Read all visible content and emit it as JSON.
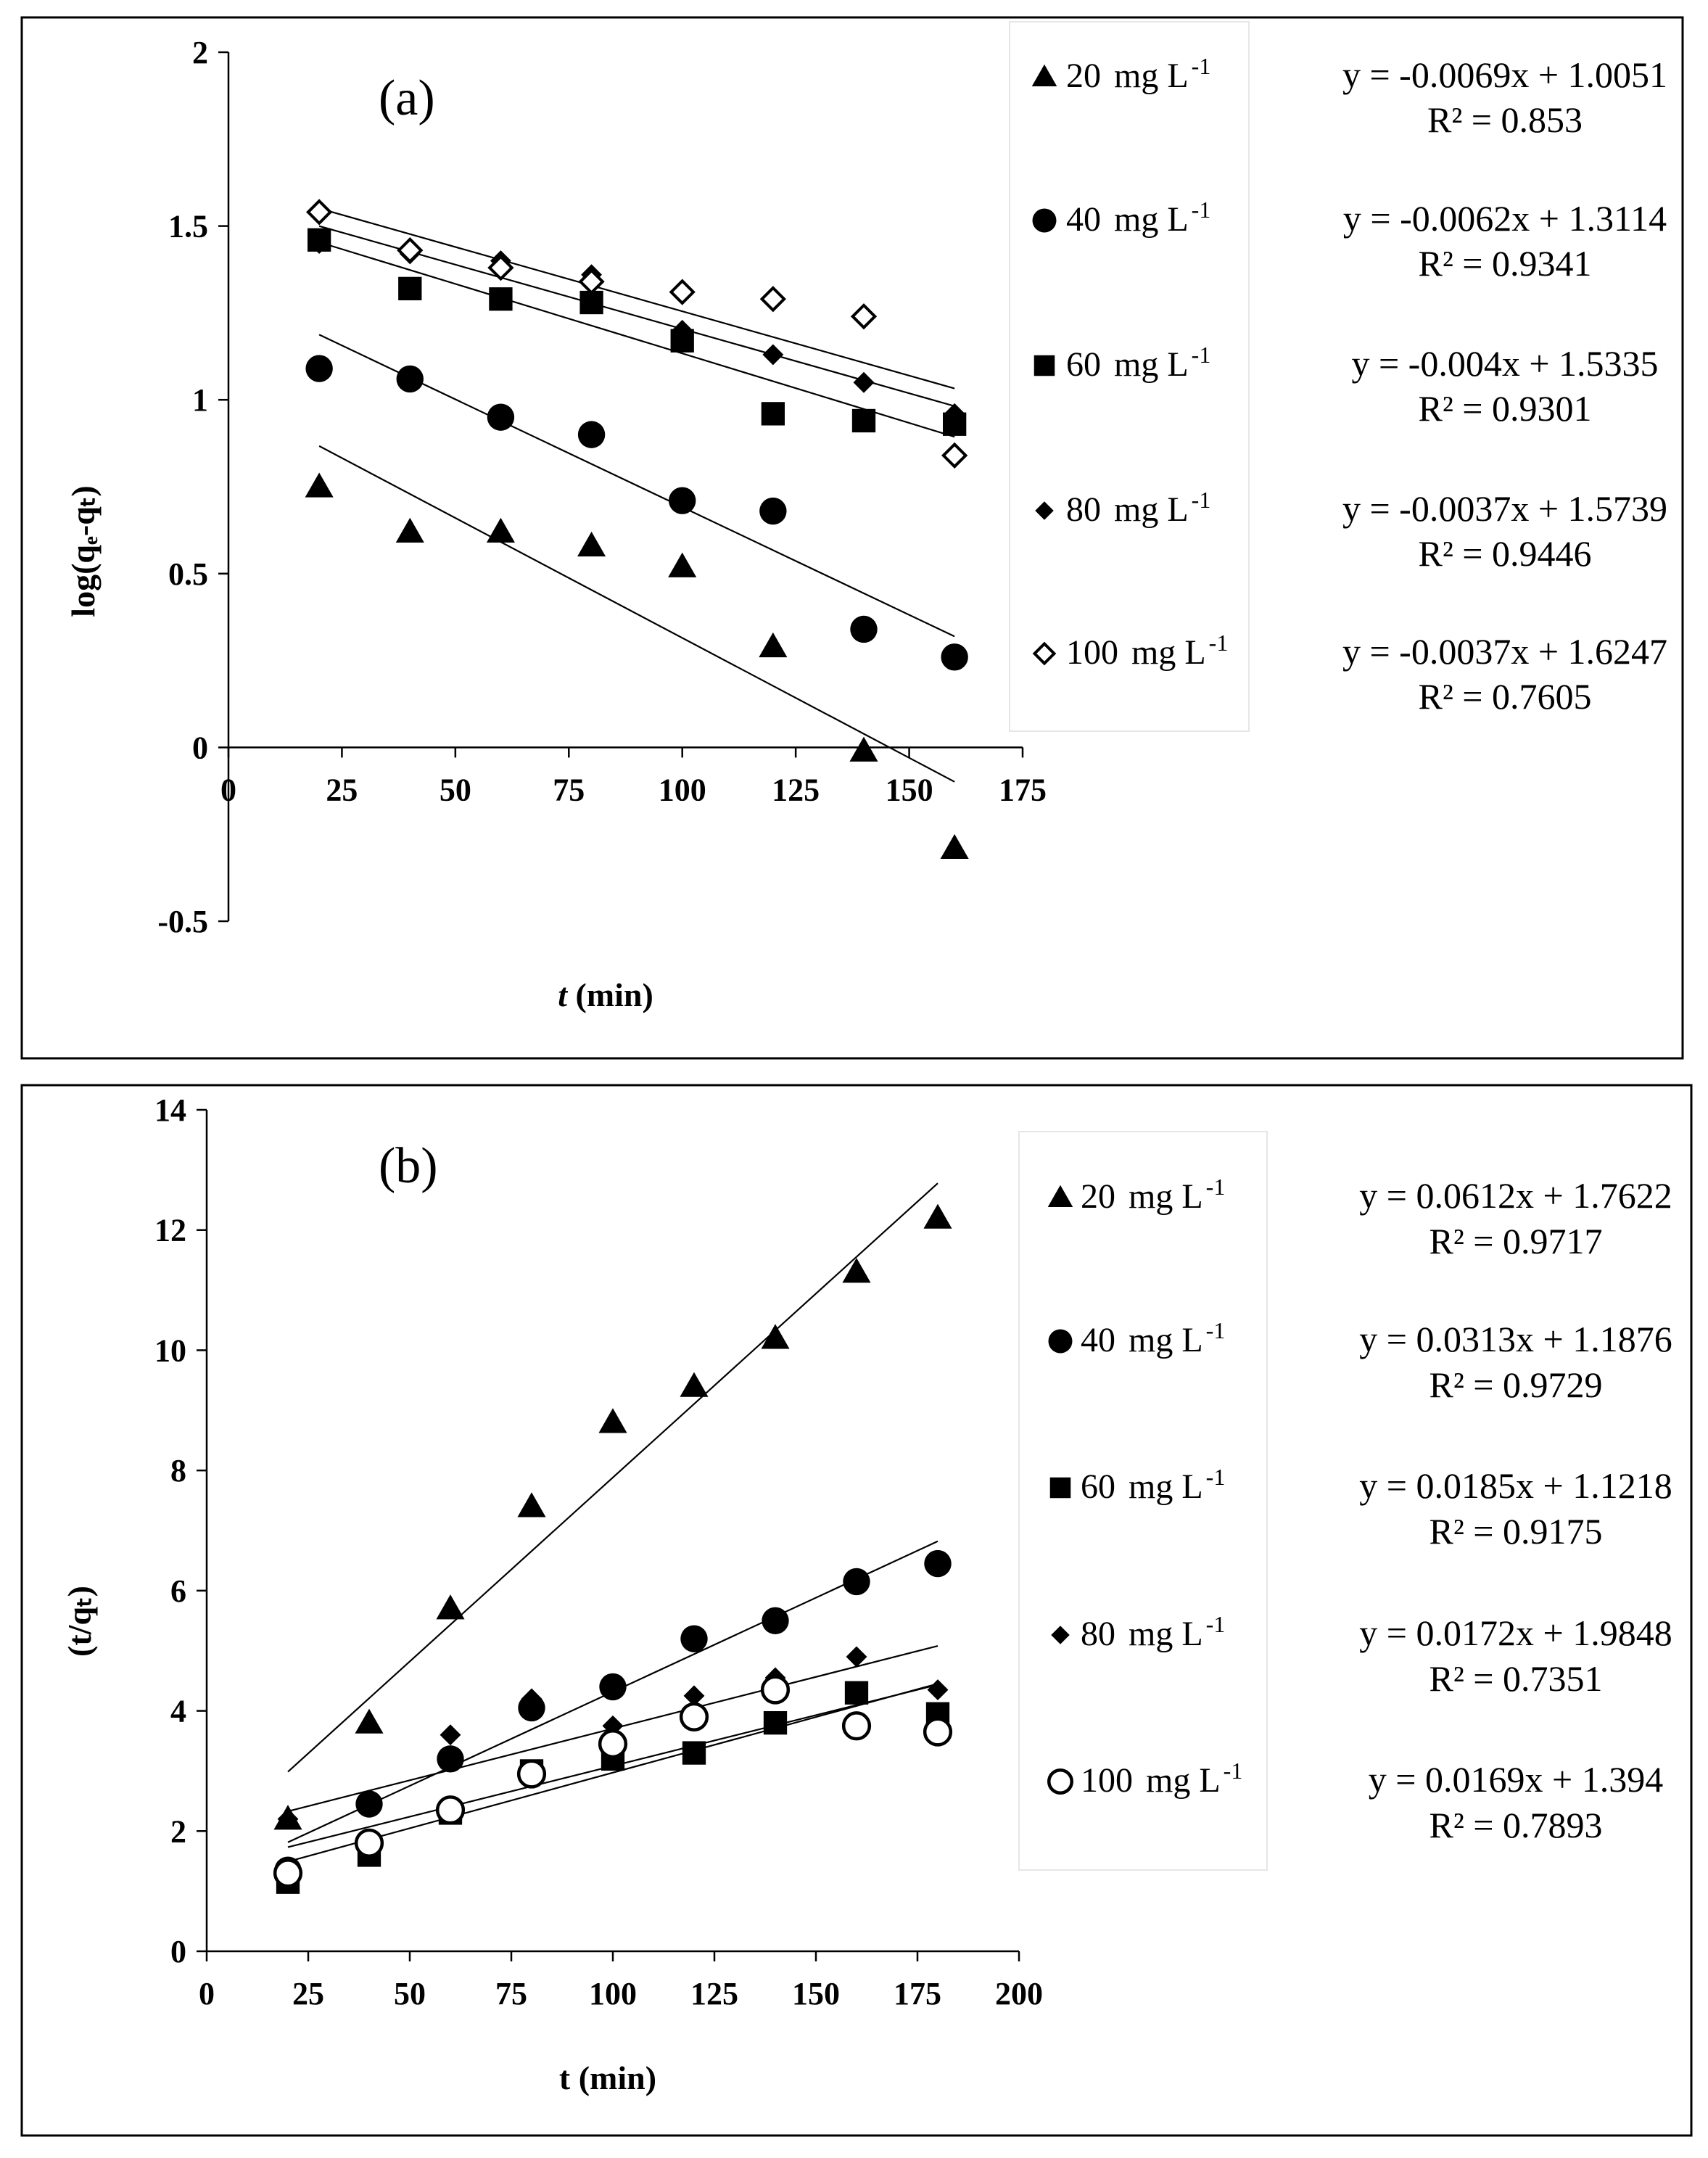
{
  "chart_data": [
    {
      "id": "a",
      "type": "scatter",
      "panel_label": "(a)",
      "xlabel_italic": "t",
      "xlabel_rest": " (min)",
      "ylabel": "log(qₑ-qₜ)",
      "xlim": [
        0,
        175
      ],
      "ylim": [
        -0.5,
        2
      ],
      "xticks": [
        0,
        25,
        50,
        75,
        100,
        125,
        150,
        175
      ],
      "xtick_labels": [
        "0",
        "25",
        "50",
        "75",
        "100",
        "125",
        "150",
        "175"
      ],
      "yticks": [
        -0.5,
        0,
        0.5,
        1,
        1.5,
        2
      ],
      "ytick_labels": [
        "-0.5",
        "0",
        "0.5",
        "1",
        "1.5",
        "2"
      ],
      "series": [
        {
          "name": "20",
          "unit": "mg L",
          "unit_sup": "-1",
          "marker": "triangle",
          "x": [
            20,
            40,
            60,
            80,
            100,
            120,
            140,
            160
          ],
          "y": [
            0.75,
            0.62,
            0.62,
            0.58,
            0.52,
            0.29,
            -0.01,
            -0.29
          ],
          "fit": {
            "slope": -0.0069,
            "intercept": 1.0051,
            "x_range": [
              20,
              160
            ]
          },
          "equation": "y = -0.0069x + 1.0051",
          "r2": "R² = 0.853"
        },
        {
          "name": "40",
          "unit": "mg L",
          "unit_sup": "-1",
          "marker": "circle",
          "x": [
            20,
            40,
            60,
            80,
            100,
            120,
            140,
            160
          ],
          "y": [
            1.09,
            1.06,
            0.95,
            0.9,
            0.71,
            0.68,
            0.34,
            0.26
          ],
          "fit": {
            "slope": -0.0062,
            "intercept": 1.3114,
            "x_range": [
              20,
              160
            ]
          },
          "equation": "y = -0.0062x + 1.3114",
          "r2": "R² = 0.9341"
        },
        {
          "name": "60",
          "unit": "mg L",
          "unit_sup": "-1",
          "marker": "square",
          "x": [
            20,
            40,
            60,
            80,
            100,
            120,
            140,
            160
          ],
          "y": [
            1.46,
            1.32,
            1.29,
            1.28,
            1.17,
            0.96,
            0.94,
            0.93
          ],
          "fit": {
            "slope": -0.004,
            "intercept": 1.5335,
            "x_range": [
              20,
              160
            ]
          },
          "equation": "y = -0.004x + 1.5335",
          "r2": "R² = 0.9301"
        },
        {
          "name": "80",
          "unit": "mg L",
          "unit_sup": "-1",
          "marker": "diamond",
          "x": [
            20,
            40,
            60,
            80,
            100,
            120,
            140,
            160
          ],
          "y": [
            1.45,
            1.42,
            1.4,
            1.36,
            1.2,
            1.13,
            1.05,
            0.96
          ],
          "fit": {
            "slope": -0.0037,
            "intercept": 1.5739,
            "x_range": [
              20,
              160
            ]
          },
          "equation": "y = -0.0037x + 1.5739",
          "r2": "R² = 0.9446"
        },
        {
          "name": "100",
          "unit": "mg L",
          "unit_sup": "-1",
          "marker": "diamond-open",
          "x": [
            20,
            40,
            60,
            80,
            100,
            120,
            140,
            160
          ],
          "y": [
            1.54,
            1.43,
            1.38,
            1.34,
            1.31,
            1.29,
            1.24,
            0.84
          ],
          "fit": {
            "slope": -0.0037,
            "intercept": 1.6247,
            "x_range": [
              20,
              160
            ]
          },
          "equation": "y = -0.0037x + 1.6247",
          "r2": "R² = 0.7605"
        }
      ]
    },
    {
      "id": "b",
      "type": "scatter",
      "panel_label": "(b)",
      "xlabel_italic": "",
      "xlabel_rest": "t (min)",
      "ylabel": "(t/qₜ)",
      "xlim": [
        0,
        200
      ],
      "ylim": [
        0,
        14
      ],
      "xticks": [
        0,
        25,
        50,
        75,
        100,
        125,
        150,
        175,
        200
      ],
      "xtick_labels": [
        "0",
        "25",
        "50",
        "75",
        "100",
        "125",
        "150",
        "175",
        "200"
      ],
      "yticks": [
        0,
        2,
        4,
        6,
        8,
        10,
        12,
        14
      ],
      "ytick_labels": [
        "0",
        "2",
        "4",
        "6",
        "8",
        "10",
        "12",
        "14"
      ],
      "series": [
        {
          "name": "20",
          "unit": "mg L",
          "unit_sup": "-1",
          "marker": "triangle",
          "x": [
            20,
            40,
            60,
            80,
            100,
            120,
            140,
            160,
            180
          ],
          "y": [
            2.2,
            3.8,
            5.7,
            7.4,
            8.8,
            9.4,
            10.2,
            11.3,
            12.2
          ],
          "fit": {
            "slope": 0.0612,
            "intercept": 1.7622,
            "x_range": [
              20,
              180
            ]
          },
          "equation": "y = 0.0612x + 1.7622",
          "r2": "R² = 0.9717"
        },
        {
          "name": "40",
          "unit": "mg L",
          "unit_sup": "-1",
          "marker": "circle",
          "x": [
            20,
            40,
            60,
            80,
            100,
            120,
            140,
            160,
            180
          ],
          "y": [
            1.35,
            2.45,
            3.2,
            4.05,
            4.4,
            5.2,
            5.5,
            6.15,
            6.45
          ],
          "fit": {
            "slope": 0.0313,
            "intercept": 1.1876,
            "x_range": [
              20,
              180
            ]
          },
          "equation": "y = 0.0313x + 1.1876",
          "r2": "R² = 0.9729"
        },
        {
          "name": "60",
          "unit": "mg L",
          "unit_sup": "-1",
          "marker": "square",
          "x": [
            20,
            40,
            60,
            80,
            100,
            120,
            140,
            160,
            180
          ],
          "y": [
            1.15,
            1.6,
            2.3,
            3.0,
            3.2,
            3.3,
            3.8,
            4.3,
            3.95
          ],
          "fit": {
            "slope": 0.0185,
            "intercept": 1.1218,
            "x_range": [
              20,
              180
            ]
          },
          "equation": "y = 0.0185x + 1.1218",
          "r2": "R² = 0.9175"
        },
        {
          "name": "80",
          "unit": "mg L",
          "unit_sup": "-1",
          "marker": "diamond",
          "x": [
            20,
            40,
            60,
            80,
            100,
            120,
            140,
            160,
            180
          ],
          "y": [
            2.2,
            2.45,
            3.6,
            4.2,
            3.75,
            4.25,
            4.55,
            4.9,
            4.35
          ],
          "fit": {
            "slope": 0.0172,
            "intercept": 1.9848,
            "x_range": [
              20,
              180
            ]
          },
          "equation": "y = 0.0172x + 1.9848",
          "r2": "R² = 0.7351"
        },
        {
          "name": "100",
          "unit": "mg L",
          "unit_sup": "-1",
          "marker": "circle-open",
          "x": [
            20,
            40,
            60,
            80,
            100,
            120,
            140,
            160,
            180
          ],
          "y": [
            1.3,
            1.8,
            2.35,
            2.95,
            3.45,
            3.9,
            4.35,
            3.75,
            3.65
          ],
          "fit": {
            "slope": 0.0169,
            "intercept": 1.394,
            "x_range": [
              20,
              180
            ]
          },
          "equation": "y = 0.0169x + 1.394",
          "r2": "R² = 0.7893"
        }
      ]
    }
  ]
}
